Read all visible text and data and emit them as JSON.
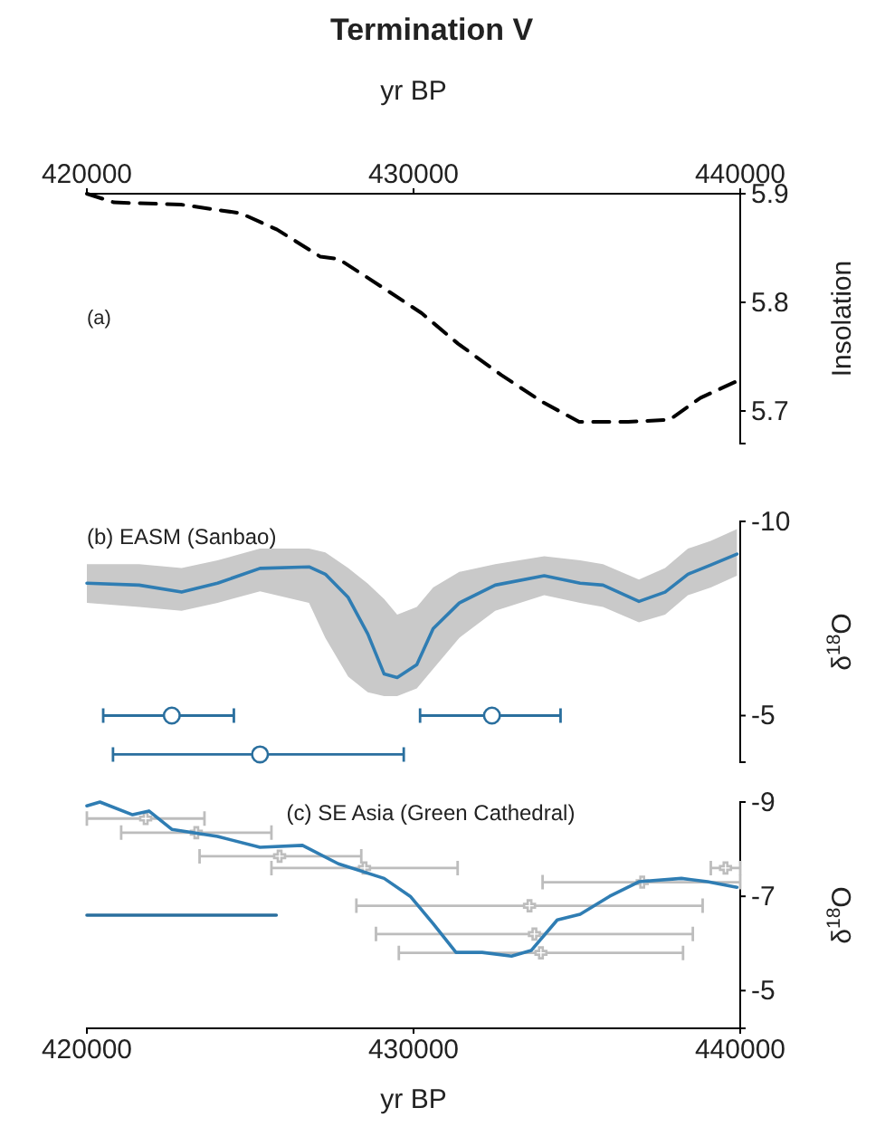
{
  "chart_data": [
    {
      "type": "line",
      "title": "Termination V",
      "xlabel": "yr BP",
      "ylabel": "Insolation",
      "xlim": [
        420000,
        440000
      ],
      "xticks": [
        420000,
        430000,
        440000
      ],
      "ylim": [
        5.67,
        5.9
      ],
      "yticks": [
        5.7,
        5.8,
        5.9
      ],
      "line_style": "dashed",
      "annotations": [
        "(a)"
      ],
      "series": [
        {
          "color": "#000000",
          "x": [
            420000,
            420830,
            422880,
            424710,
            425820,
            427150,
            427700,
            429140,
            430250,
            431360,
            432690,
            433960,
            435070,
            436570,
            437840,
            438780,
            439940
          ],
          "values": [
            5.9,
            5.892,
            5.89,
            5.882,
            5.867,
            5.842,
            5.84,
            5.812,
            5.79,
            5.762,
            5.733,
            5.708,
            5.69,
            5.69,
            5.692,
            5.712,
            5.728
          ]
        }
      ]
    },
    {
      "type": "line",
      "ylabel": "δ$^{18}$O",
      "xlim": [
        420000,
        440000
      ],
      "ylim": [
        -3.8,
        -10
      ],
      "yticks": [
        -10,
        -5
      ],
      "tick_labels": "y",
      "annotations": [
        "(b) EASM (Sanbao)"
      ],
      "series": [
        {
          "color": "#2f7db3",
          "x": [
            420000,
            421600,
            422900,
            424000,
            425300,
            426800,
            427300,
            428000,
            428600,
            429100,
            429500,
            430100,
            430600,
            431400,
            432500,
            434000,
            435100,
            435800,
            436900,
            437700,
            438400,
            439100,
            439900
          ],
          "values": [
            -8.41,
            -8.36,
            -8.18,
            -8.41,
            -8.79,
            -8.83,
            -8.64,
            -8.04,
            -7.1,
            -6.07,
            -5.98,
            -6.31,
            -7.24,
            -7.9,
            -8.36,
            -8.6,
            -8.41,
            -8.36,
            -7.94,
            -8.18,
            -8.64,
            -8.88,
            -9.16
          ],
          "lower": [
            -8.9,
            -8.9,
            -8.8,
            -9.0,
            -9.3,
            -9.3,
            -9.2,
            -8.8,
            -8.4,
            -8.0,
            -7.6,
            -7.8,
            -8.3,
            -8.7,
            -8.9,
            -9.1,
            -9.0,
            -8.9,
            -8.5,
            -8.8,
            -9.3,
            -9.5,
            -9.8
          ],
          "upper": [
            -7.9,
            -7.8,
            -7.7,
            -7.9,
            -8.2,
            -7.9,
            -7.0,
            -6.0,
            -5.6,
            -5.5,
            -5.5,
            -5.7,
            -6.2,
            -7.0,
            -7.7,
            -8.1,
            -7.9,
            -7.8,
            -7.4,
            -7.6,
            -8.1,
            -8.3,
            -8.6
          ]
        },
        {
          "type": "scatter",
          "color": "#2a6f9e",
          "marker": "circle",
          "x": [
            422600,
            432400,
            425300
          ],
          "values": [
            -5,
            -5,
            -4
          ],
          "xerrors": [
            [
              420500,
              424500
            ],
            [
              430200,
              434500
            ],
            [
              420800,
              429700
            ]
          ]
        }
      ]
    },
    {
      "type": "line",
      "ylabel": "δ$^{18}$O",
      "xlabel": "yr BP",
      "xlim": [
        420000,
        440000
      ],
      "xticks": [
        420000,
        430000,
        440000
      ],
      "ylim": [
        -4.2,
        -9
      ],
      "yticks": [
        -9,
        -7,
        -5
      ],
      "annotations": [
        "(c) SE Asia (Green Cathedral)"
      ],
      "series": [
        {
          "type": "scatter",
          "color": "#bdbdbd",
          "marker": "cross",
          "x": [
            421800,
            423350,
            425900,
            428500,
            433550,
            433700,
            433900,
            437000,
            439550
          ],
          "values": [
            -8.65,
            -8.35,
            -7.85,
            -7.6,
            -6.8,
            -6.2,
            -5.8,
            -7.3,
            -7.6
          ],
          "xerrors": [
            [
              420000,
              423600
            ],
            [
              421050,
              425650
            ],
            [
              423450,
              428400
            ],
            [
              425650,
              431350
            ],
            [
              428250,
              438850
            ],
            [
              428850,
              438550
            ],
            [
              429550,
              438250
            ],
            [
              433950,
              440000
            ],
            [
              439100,
              440000
            ]
          ]
        },
        {
          "color": "#2f7db3",
          "x": [
            420000,
            420400,
            421400,
            421900,
            422600,
            424000,
            425300,
            426600,
            427700,
            429100,
            429900,
            430600,
            431300,
            432100,
            433000,
            433600,
            434400,
            435100,
            436000,
            436900,
            438200,
            439000,
            439900
          ],
          "values": [
            -8.92,
            -9.0,
            -8.73,
            -8.81,
            -8.42,
            -8.27,
            -8.04,
            -8.08,
            -7.69,
            -7.38,
            -7.0,
            -6.42,
            -5.81,
            -5.81,
            -5.73,
            -5.85,
            -6.5,
            -6.62,
            -7.0,
            -7.31,
            -7.38,
            -7.31,
            -7.19
          ]
        },
        {
          "color": "#2a6f9e",
          "x": [
            420000,
            425800
          ],
          "values": [
            -6.6,
            -6.6
          ]
        }
      ]
    }
  ]
}
